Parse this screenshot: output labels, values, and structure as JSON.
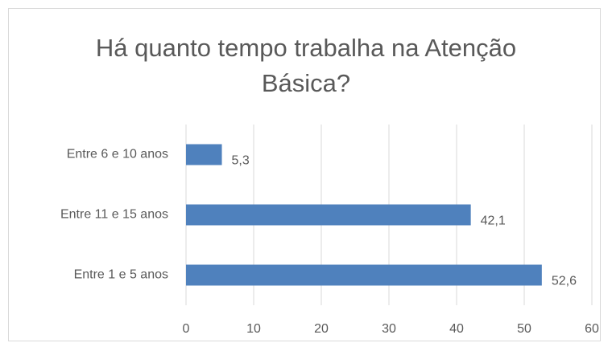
{
  "chart_data": {
    "type": "barh",
    "title": "Há quanto tempo trabalha na Atenção Básica?",
    "categories": [
      "Entre 6 e 10 anos",
      "Entre 11 e 15 anos",
      "Entre 1 e 5 anos"
    ],
    "values": [
      5.3,
      42.1,
      52.6
    ],
    "value_labels": [
      "5,3",
      "42,1",
      "52,6"
    ],
    "color": "#4f81bd",
    "xlim": [
      0,
      60
    ],
    "xticks": [
      0,
      10,
      20,
      30,
      40,
      50,
      60
    ],
    "grid": true
  }
}
